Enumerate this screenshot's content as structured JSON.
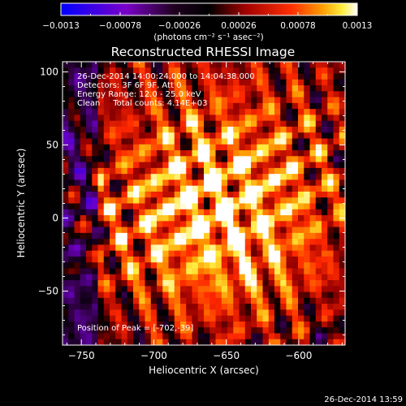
{
  "chart_data": {
    "type": "heatmap",
    "title": "Reconstructed RHESSI Image",
    "xlabel": "Heliocentric X (arcsec)",
    "ylabel": "Heliocentric Y (arcsec)",
    "xlim": [
      -763,
      -568
    ],
    "ylim": [
      -87,
      107
    ],
    "xticks": [
      -750,
      -700,
      -650,
      -600
    ],
    "yticks": [
      -50,
      0,
      50,
      100
    ],
    "colorbar": {
      "range": [
        -0.0013,
        0.0013
      ],
      "tick_values": [
        -0.0013,
        -0.00078,
        -0.00026,
        0.00026,
        0.00078,
        0.0013
      ],
      "tick_labels": [
        "-0.0013",
        "-0.00078",
        "-0.00026",
        "0.00026",
        "0.00078",
        "0.0013"
      ],
      "unit_label": "(photons cm⁻² s⁻¹ asec⁻²)",
      "colors": [
        "#0000ff",
        "#800080",
        "#000000",
        "#800000",
        "#ff0000",
        "#ff8000",
        "#ffff00",
        "#ffffff"
      ]
    },
    "annotations": [
      "26-Dec-2014 14:00:24.000 to 14:04:38.000",
      "Detectors: 3F 6F 9F, Att 0",
      "Energy Range: 12.0 - 25.0 keV",
      "Clean     Total counts: 4.14E+03"
    ],
    "peak_label": "Position of Peak = [-702,-39]",
    "peak_position": [
      -702,
      -39
    ],
    "grid_cells": [
      48,
      48
    ]
  },
  "footer": {
    "timestamp": "26-Dec-2014 13:59"
  }
}
